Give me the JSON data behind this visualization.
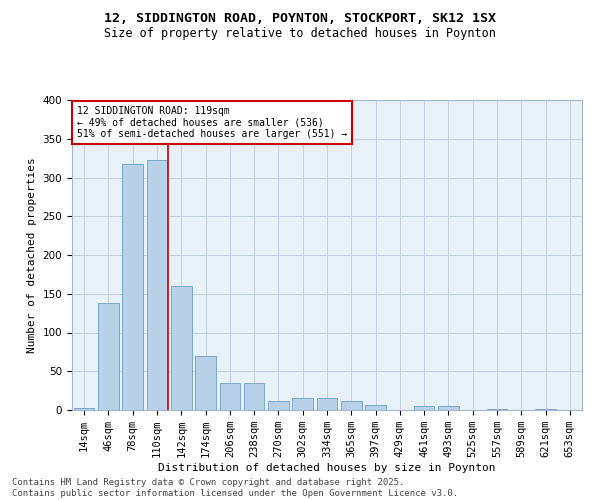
{
  "title": "12, SIDDINGTON ROAD, POYNTON, STOCKPORT, SK12 1SX",
  "subtitle": "Size of property relative to detached houses in Poynton",
  "xlabel": "Distribution of detached houses by size in Poynton",
  "ylabel": "Number of detached properties",
  "bar_color": "#b8d0e8",
  "bar_edge_color": "#6aa0cc",
  "background_color": "#e8f0f8",
  "grid_color": "#c0d0e0",
  "categories": [
    "14sqm",
    "46sqm",
    "78sqm",
    "110sqm",
    "142sqm",
    "174sqm",
    "206sqm",
    "238sqm",
    "270sqm",
    "302sqm",
    "334sqm",
    "365sqm",
    "397sqm",
    "429sqm",
    "461sqm",
    "493sqm",
    "525sqm",
    "557sqm",
    "589sqm",
    "621sqm",
    "653sqm"
  ],
  "values": [
    3,
    138,
    317,
    322,
    160,
    70,
    35,
    35,
    12,
    15,
    15,
    12,
    7,
    0,
    5,
    5,
    0,
    1,
    0,
    1,
    0
  ],
  "vline_x": 3.45,
  "vline_color": "#cc0000",
  "annotation_text": "12 SIDDINGTON ROAD: 119sqm\n← 49% of detached houses are smaller (536)\n51% of semi-detached houses are larger (551) →",
  "annotation_box_color": "#cc0000",
  "annotation_bg": "#ffffff",
  "ylim": [
    0,
    400
  ],
  "yticks": [
    0,
    50,
    100,
    150,
    200,
    250,
    300,
    350,
    400
  ],
  "footer": "Contains HM Land Registry data © Crown copyright and database right 2025.\nContains public sector information licensed under the Open Government Licence v3.0.",
  "title_fontsize": 9.5,
  "subtitle_fontsize": 8.5,
  "xlabel_fontsize": 8,
  "ylabel_fontsize": 8,
  "tick_fontsize": 7.5,
  "footer_fontsize": 6.5,
  "ann_fontsize": 7
}
